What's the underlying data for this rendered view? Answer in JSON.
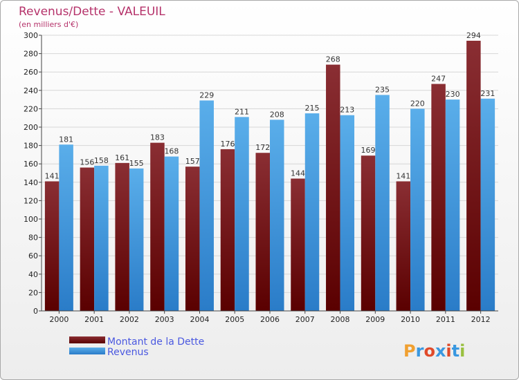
{
  "colors": {
    "debt": "#6a0d12",
    "revenue": "#3a98e0",
    "title": "#b5326a",
    "legend": "#4a58e0"
  },
  "logo": {
    "text": "Proxiti",
    "letter_colors": [
      "#f0a030",
      "#3a98e0",
      "#e04a2a",
      "#3a98e0",
      "#e04a2a",
      "#3a98e0",
      "#9ac040"
    ]
  },
  "chart_data": {
    "type": "bar",
    "title": "Revenus/Dette - VALEUIL",
    "subtitle": "(en milliers d'€)",
    "categories": [
      "2000",
      "2001",
      "2002",
      "2003",
      "2004",
      "2005",
      "2006",
      "2007",
      "2008",
      "2009",
      "2010",
      "2011",
      "2012"
    ],
    "series": [
      {
        "name": "Montant de la Dette",
        "color": "#6a0d12",
        "values": [
          141,
          156,
          161,
          183,
          157,
          176,
          172,
          144,
          268,
          169,
          141,
          247,
          294
        ]
      },
      {
        "name": "Revenus",
        "color": "#3a98e0",
        "values": [
          181,
          158,
          155,
          168,
          229,
          211,
          208,
          215,
          213,
          235,
          220,
          230,
          231
        ]
      }
    ],
    "ylim": [
      0,
      300
    ],
    "yticks": [
      0,
      20,
      40,
      60,
      80,
      100,
      120,
      140,
      160,
      180,
      200,
      220,
      240,
      260,
      280,
      300
    ],
    "grid": true,
    "legend": "bottom-left"
  }
}
